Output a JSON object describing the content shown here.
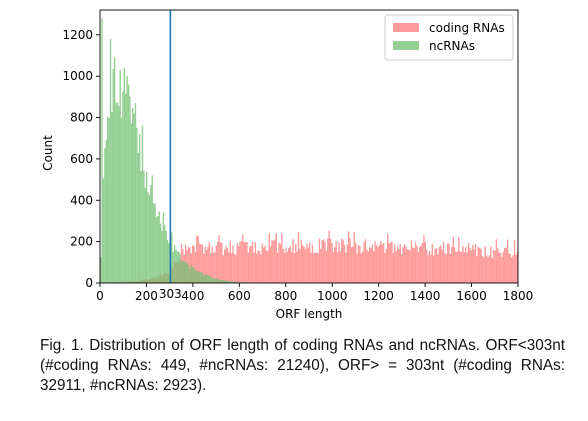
{
  "chart_data": {
    "type": "histogram",
    "xlabel": "ORF length",
    "ylabel": "Count",
    "xlim": [
      0,
      1800
    ],
    "ylim": [
      0,
      1320
    ],
    "x_ticks": [
      0,
      200,
      400,
      600,
      800,
      1000,
      1200,
      1400,
      1600,
      1800
    ],
    "y_ticks": [
      0,
      200,
      400,
      600,
      800,
      1000,
      1200
    ],
    "bin_width": 6,
    "grid": false,
    "legend_position": "top-right",
    "threshold": {
      "x": 303,
      "label": "303",
      "color": "#1f77b4"
    },
    "series": [
      {
        "name": "coding RNAs",
        "color": "#ff7f7f",
        "profile": [
          [
            0,
            0
          ],
          [
            150,
            8
          ],
          [
            240,
            25
          ],
          [
            300,
            55
          ],
          [
            330,
            110
          ],
          [
            360,
            150
          ],
          [
            400,
            165
          ],
          [
            600,
            170
          ],
          [
            800,
            175
          ],
          [
            950,
            185
          ],
          [
            1200,
            175
          ],
          [
            1450,
            165
          ],
          [
            1600,
            158
          ],
          [
            1800,
            150
          ]
        ]
      },
      {
        "name": "ncRNAs",
        "color": "#76c176",
        "profile": [
          [
            0,
            40
          ],
          [
            12,
            420
          ],
          [
            25,
            760
          ],
          [
            40,
            870
          ],
          [
            60,
            920
          ],
          [
            80,
            960
          ],
          [
            100,
            930
          ],
          [
            120,
            880
          ],
          [
            140,
            820
          ],
          [
            160,
            700
          ],
          [
            180,
            590
          ],
          [
            200,
            500
          ],
          [
            220,
            420
          ],
          [
            240,
            350
          ],
          [
            260,
            300
          ],
          [
            280,
            260
          ],
          [
            300,
            200
          ],
          [
            330,
            150
          ],
          [
            360,
            100
          ],
          [
            400,
            70
          ],
          [
            450,
            40
          ],
          [
            500,
            20
          ],
          [
            550,
            10
          ],
          [
            600,
            4
          ],
          [
            700,
            0
          ]
        ],
        "peaks": [
          [
            6,
            1280
          ],
          [
            42,
            1180
          ],
          [
            60,
            1090
          ],
          [
            84,
            1030
          ],
          [
            120,
            960
          ],
          [
            150,
            870
          ],
          [
            180,
            760
          ],
          [
            222,
            520
          ],
          [
            270,
            340
          ],
          [
            306,
            245
          ]
        ]
      }
    ]
  },
  "caption": "Fig. 1. Distribution of ORF length of coding RNAs and ncRNAs. ORF<303nt (#coding RNAs: 449, #ncRNAs: 21240), ORF> = 303nt (#coding RNAs: 32911, #ncRNAs: 2923)."
}
